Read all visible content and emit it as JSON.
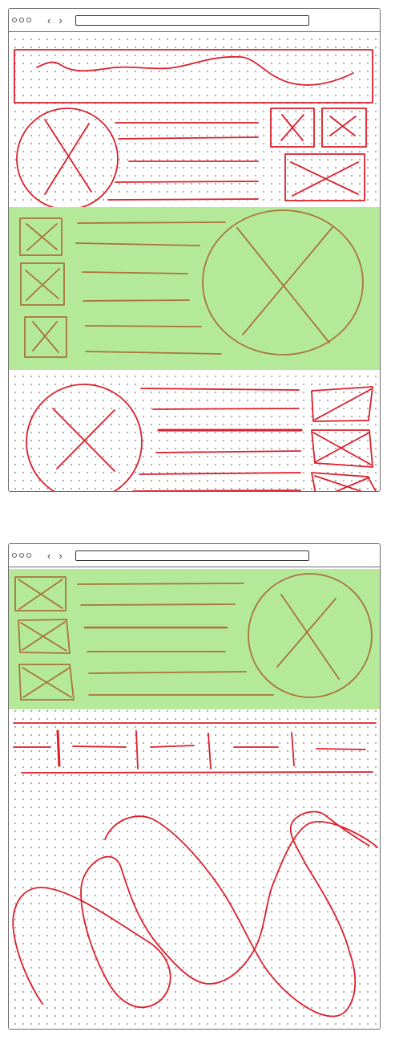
{
  "colors": {
    "sketch_red": "#dd1f2b",
    "sketch_brown": "#a8743a",
    "highlight_green": "#b5e99a",
    "frame_gray": "#6b6b6b"
  },
  "windows": [
    {
      "controls": {
        "back_icon": "‹",
        "forward_icon": "›"
      },
      "sections": [
        "hero-banner",
        "feature-row-red",
        "feature-row-green-highlighted",
        "feature-row-red-bottom"
      ]
    },
    {
      "controls": {
        "back_icon": "‹",
        "forward_icon": "›"
      },
      "sections": [
        "feature-row-green-highlighted",
        "nav-divider-row",
        "freeform-scribble-area"
      ]
    }
  ]
}
